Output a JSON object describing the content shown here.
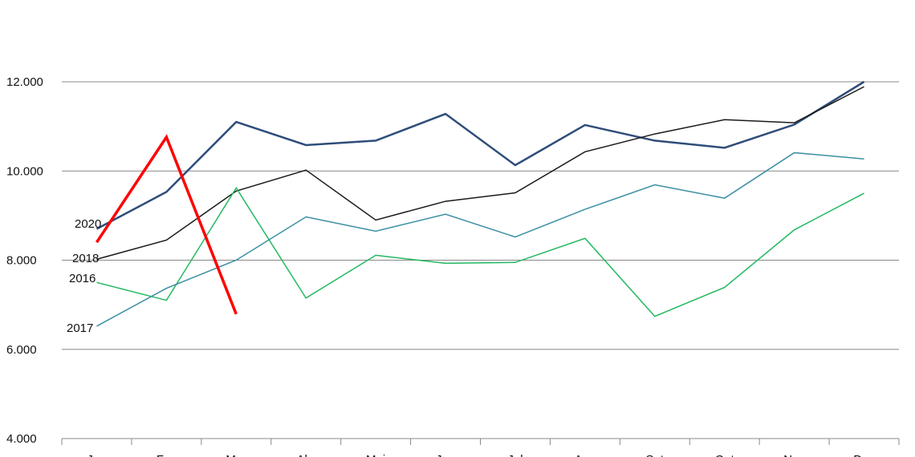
{
  "chart_data": {
    "type": "line",
    "categories": [
      "Jan",
      "Fev",
      "Mar",
      "Abr",
      "Mai",
      "Jun",
      "Jul",
      "Ago",
      "Set",
      "Out",
      "Nov",
      "Dez"
    ],
    "ylim": [
      4000,
      12000
    ],
    "yticks": [
      {
        "value": 4000,
        "label": "4.000"
      },
      {
        "value": 6000,
        "label": "6.000"
      },
      {
        "value": 8000,
        "label": "8.000"
      },
      {
        "value": 10000,
        "label": "10.000"
      },
      {
        "value": 12000,
        "label": "12.000"
      }
    ],
    "grid": true,
    "series": [
      {
        "name": "2020",
        "color": "#2e4d7a",
        "values": [
          8700,
          9530,
          11100,
          10580,
          10680,
          11280,
          10130,
          11030,
          10680,
          10520,
          11040,
          12000
        ]
      },
      {
        "name": "2018",
        "color": "#1a1a1a",
        "values": [
          8020,
          8450,
          9550,
          10020,
          8900,
          9320,
          9510,
          10430,
          10830,
          11150,
          11080,
          11890
        ]
      },
      {
        "name": "2016",
        "color": "#22b860",
        "values": [
          7500,
          7100,
          9620,
          7150,
          8110,
          7930,
          7950,
          8490,
          6740,
          7390,
          8680,
          9500
        ]
      },
      {
        "name": "2017",
        "color": "#3a8fa3",
        "values": [
          6520,
          7370,
          8000,
          8970,
          8650,
          9030,
          8520,
          9140,
          9690,
          9390,
          10410,
          10270
        ]
      },
      {
        "color": "#ff0000",
        "values": [
          8400,
          10760,
          6790,
          null,
          null,
          null,
          null,
          null,
          null,
          null,
          null,
          null
        ]
      }
    ]
  }
}
